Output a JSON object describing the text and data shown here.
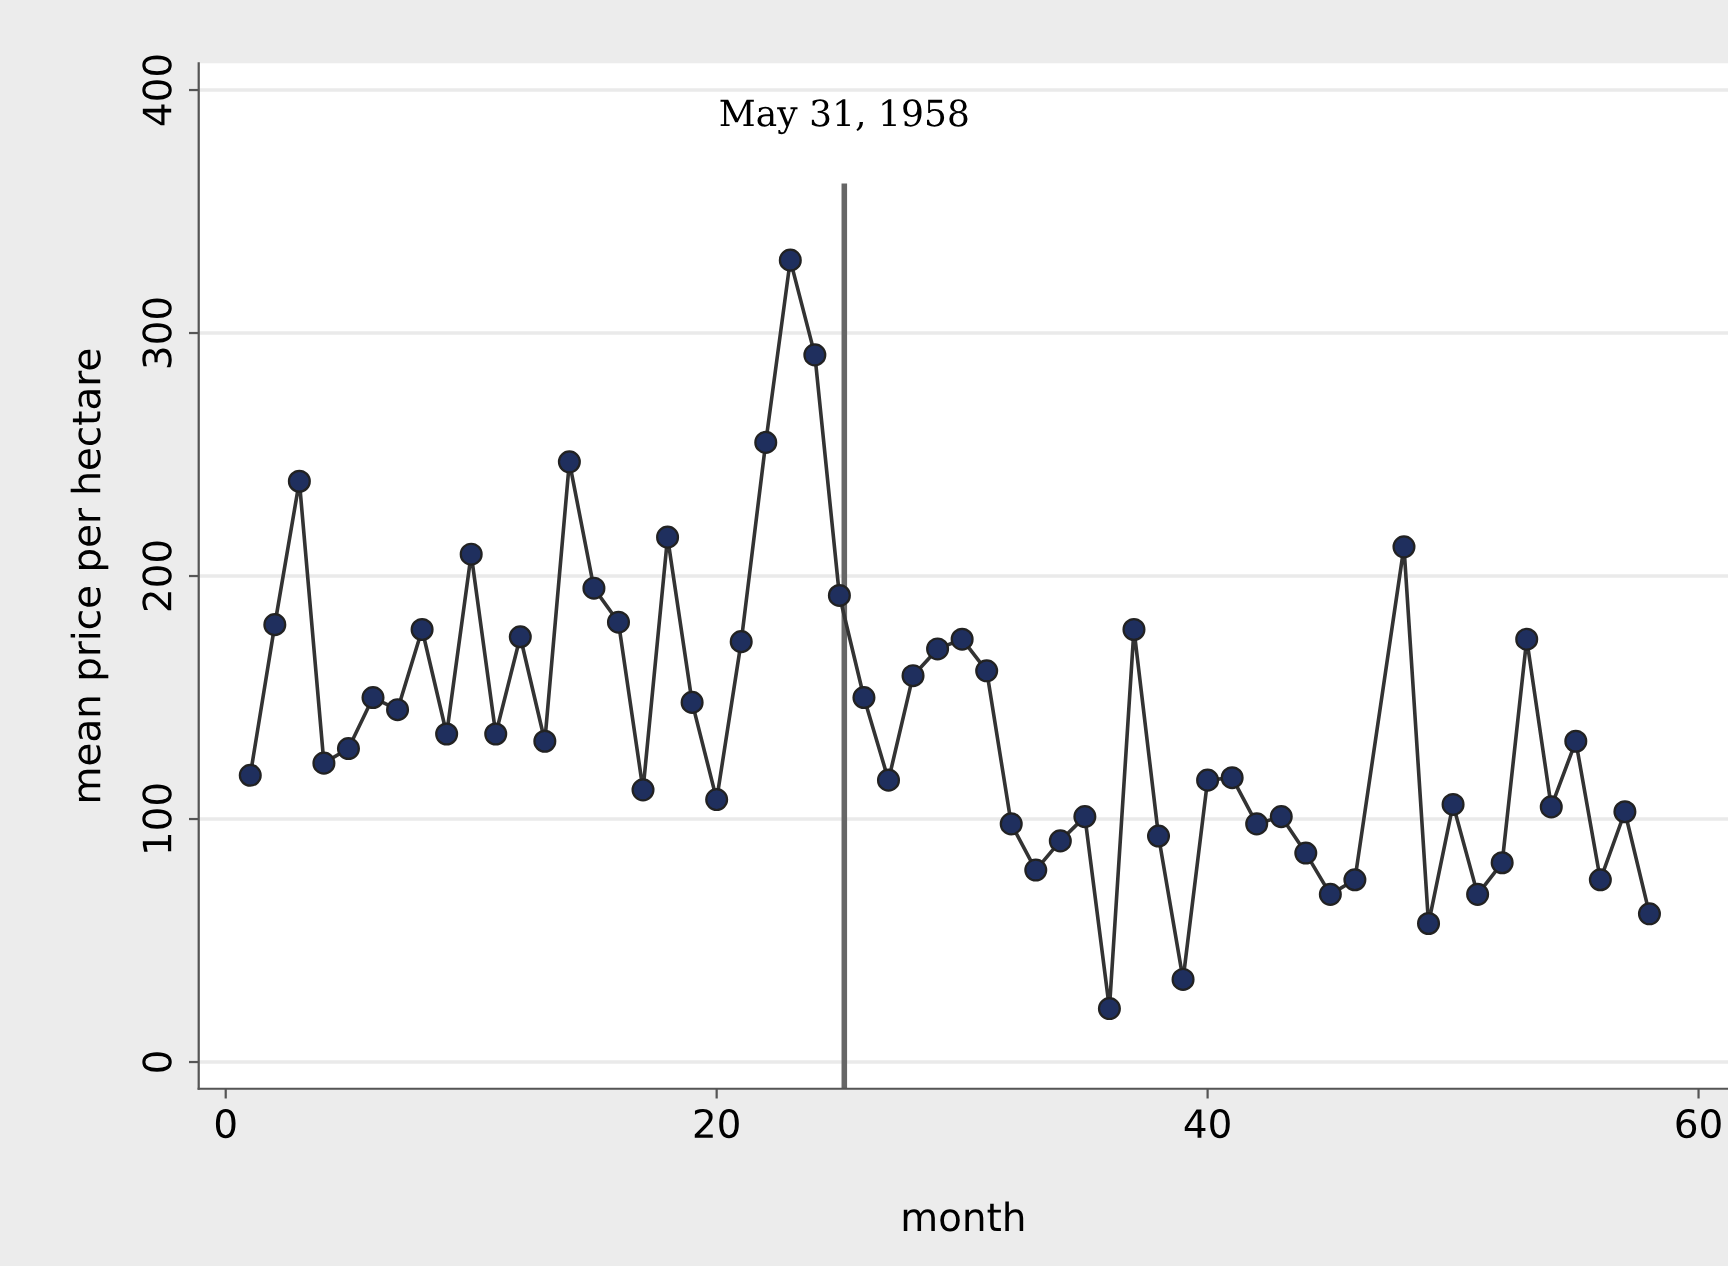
{
  "chart_data": {
    "type": "line",
    "xlabel": "month",
    "ylabel": "mean price per hectare",
    "x": [
      1,
      2,
      3,
      4,
      5,
      6,
      7,
      8,
      9,
      10,
      11,
      12,
      13,
      14,
      15,
      16,
      17,
      18,
      19,
      20,
      21,
      22,
      23,
      24,
      25,
      26,
      27,
      28,
      29,
      30,
      31,
      32,
      33,
      34,
      35,
      36,
      37,
      38,
      39,
      40,
      41,
      42,
      43,
      44,
      45,
      46,
      48,
      49,
      50,
      51,
      52,
      53,
      54,
      55,
      56,
      57,
      58
    ],
    "series": [
      {
        "color": "#1f2f5e",
        "values": [
          118,
          180,
          239,
          123,
          129,
          150,
          145,
          178,
          135,
          209,
          135,
          175,
          132,
          247,
          195,
          181,
          112,
          216,
          148,
          108,
          173,
          255,
          330,
          291,
          192,
          150,
          116,
          159,
          170,
          174,
          161,
          98,
          79,
          91,
          101,
          22,
          178,
          93,
          34,
          116,
          117,
          98,
          101,
          86,
          69,
          75,
          212,
          57,
          106,
          69,
          82,
          174,
          105,
          132,
          75,
          103,
          61
        ]
      }
    ],
    "marker": "circle",
    "line_style": "solid",
    "grid": "y",
    "xlim": [
      -1.1,
      61.2
    ],
    "ylim": [
      -11,
      411
    ],
    "xticks": [
      0,
      20,
      40,
      60
    ],
    "yticks": [
      0,
      100,
      200,
      300,
      400
    ],
    "ref_lines": [
      {
        "axis": "x",
        "value": 25.2,
        "label": "May 31, 1958",
        "color": "#666666"
      }
    ]
  }
}
